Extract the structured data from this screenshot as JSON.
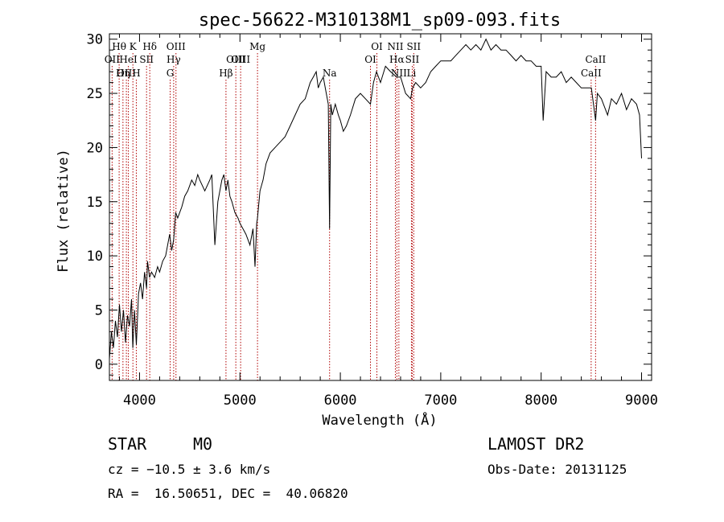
{
  "chart_data": {
    "type": "line",
    "title": "spec-56622-M310138M1_sp09-093.fits",
    "xlabel": "Wavelength (Å)",
    "ylabel": "Flux (relative)",
    "xlim": [
      3700,
      9100
    ],
    "ylim": [
      -1.5,
      30.5
    ],
    "xticks": [
      4000,
      5000,
      6000,
      7000,
      8000,
      9000
    ],
    "yticks": [
      0,
      5,
      10,
      15,
      20,
      25,
      30
    ],
    "grid": false,
    "series": [
      {
        "x": [
          3700,
          3720,
          3740,
          3760,
          3780,
          3800,
          3820,
          3840,
          3860,
          3880,
          3900,
          3920,
          3933,
          3950,
          3968,
          3990,
          4010,
          4030,
          4050,
          4070,
          4080,
          4100,
          4120,
          4150,
          4180,
          4200,
          4230,
          4260,
          4300,
          4320,
          4340,
          4360,
          4380,
          4400,
          4420,
          4450,
          4480,
          4500,
          4520,
          4550,
          4580,
          4600,
          4650,
          4700,
          4720,
          4750,
          4780,
          4800,
          4820,
          4840,
          4861,
          4880,
          4900,
          4920,
          4950,
          4980,
          5000,
          5030,
          5060,
          5100,
          5130,
          5150,
          5167,
          5175,
          5200,
          5230,
          5260,
          5300,
          5350,
          5400,
          5450,
          5500,
          5550,
          5600,
          5650,
          5700,
          5730,
          5760,
          5780,
          5800,
          5830,
          5860,
          5880,
          5893,
          5905,
          5920,
          5950,
          5980,
          6000,
          6030,
          6060,
          6100,
          6150,
          6200,
          6250,
          6300,
          6330,
          6360,
          6400,
          6450,
          6500,
          6563,
          6600,
          6650,
          6700,
          6720,
          6750,
          6800,
          6850,
          6900,
          6950,
          7000,
          7050,
          7100,
          7150,
          7200,
          7250,
          7300,
          7350,
          7400,
          7450,
          7500,
          7550,
          7600,
          7650,
          7700,
          7750,
          7800,
          7850,
          7900,
          7950,
          8000,
          8020,
          8050,
          8100,
          8150,
          8200,
          8250,
          8300,
          8350,
          8400,
          8450,
          8500,
          8542,
          8560,
          8600,
          8662,
          8700,
          8750,
          8800,
          8850,
          8900,
          8950,
          8980,
          9000
        ],
        "y": [
          0.5,
          3.0,
          1.5,
          4.0,
          2.5,
          5.5,
          3.0,
          5.0,
          2.0,
          4.5,
          3.5,
          6.0,
          1.5,
          5.0,
          1.8,
          6.5,
          7.5,
          6.0,
          8.5,
          7.0,
          9.5,
          8.0,
          8.5,
          8.0,
          9.0,
          8.5,
          9.5,
          10.0,
          12.0,
          10.5,
          11.5,
          14.0,
          13.5,
          14.0,
          14.5,
          15.5,
          16.0,
          16.5,
          17.0,
          16.5,
          17.5,
          17.0,
          16.0,
          17.0,
          17.5,
          11.0,
          15.0,
          16.0,
          17.0,
          17.5,
          16.0,
          17.0,
          15.5,
          15.0,
          14.0,
          13.5,
          13.0,
          12.5,
          12.0,
          11.0,
          12.5,
          9.0,
          13.0,
          13.5,
          16.0,
          17.0,
          18.5,
          19.5,
          20.0,
          20.5,
          21.0,
          22.0,
          23.0,
          24.0,
          24.5,
          26.0,
          26.5,
          27.0,
          25.5,
          26.0,
          26.5,
          25.0,
          24.0,
          12.5,
          24.0,
          23.0,
          24.0,
          23.0,
          22.5,
          21.5,
          22.0,
          23.0,
          24.5,
          25.0,
          24.5,
          24.0,
          26.0,
          27.0,
          26.0,
          27.5,
          27.0,
          26.5,
          26.5,
          25.0,
          24.5,
          25.5,
          26.0,
          25.5,
          26.0,
          27.0,
          27.5,
          28.0,
          28.0,
          28.0,
          28.5,
          29.0,
          29.5,
          29.0,
          29.5,
          29.0,
          30.0,
          29.0,
          29.5,
          29.0,
          29.0,
          28.5,
          28.0,
          28.5,
          28.0,
          28.0,
          27.5,
          27.5,
          22.5,
          27.0,
          26.5,
          26.5,
          27.0,
          26.0,
          26.5,
          26.0,
          25.5,
          25.5,
          25.5,
          22.5,
          25.0,
          24.5,
          23.0,
          24.5,
          24.0,
          25.0,
          23.5,
          24.5,
          24.0,
          23.0,
          19.0
        ]
      }
    ],
    "lines": [
      {
        "name": "Hθ",
        "wave": 3797,
        "row": 1
      },
      {
        "name": "OII",
        "wave": 3727,
        "row": 2
      },
      {
        "name": "OIII",
        "wave": 3869,
        "row": 3
      },
      {
        "name": "HeI",
        "wave": 3889,
        "row": 2
      },
      {
        "name": "K",
        "wave": 3934,
        "row": 1
      },
      {
        "name": "Hη",
        "wave": 3835,
        "row": 3
      },
      {
        "name": "H",
        "wave": 3968,
        "row": 3
      },
      {
        "name": "Hδ",
        "wave": 4102,
        "row": 1
      },
      {
        "name": "SII",
        "wave": 4070,
        "row": 2
      },
      {
        "name": "OIII",
        "wave": 4363,
        "row": 1
      },
      {
        "name": "Hγ",
        "wave": 4340,
        "row": 2
      },
      {
        "name": "G",
        "wave": 4305,
        "row": 3
      },
      {
        "name": "Hβ",
        "wave": 4861,
        "row": 3
      },
      {
        "name": "OIII",
        "wave": 4959,
        "row": 2
      },
      {
        "name": "OIII",
        "wave": 5007,
        "row": 2
      },
      {
        "name": "Mg",
        "wave": 5175,
        "row": 1
      },
      {
        "name": "Na",
        "wave": 5893,
        "row": 3
      },
      {
        "name": "OI",
        "wave": 6300,
        "row": 2
      },
      {
        "name": "OI",
        "wave": 6364,
        "row": 1
      },
      {
        "name": "NII",
        "wave": 6548,
        "row": 1
      },
      {
        "name": "Hα",
        "wave": 6563,
        "row": 2
      },
      {
        "name": "NII",
        "wave": 6583,
        "row": 3
      },
      {
        "name": "SII",
        "wave": 6716,
        "row": 2
      },
      {
        "name": "SII",
        "wave": 6731,
        "row": 1
      },
      {
        "name": "Li",
        "wave": 6708,
        "row": 3
      },
      {
        "name": "CaII",
        "wave": 8542,
        "row": 2
      },
      {
        "name": "CaII",
        "wave": 8498,
        "row": 3
      }
    ]
  },
  "info": {
    "class": "STAR",
    "subclass": "M0",
    "survey": "LAMOST DR2",
    "cz": "cz = −10.5 ± 3.6 km/s",
    "obs_date": "Obs-Date: 20131125",
    "radec": "RA =  16.50651, DEC =  40.06820"
  }
}
